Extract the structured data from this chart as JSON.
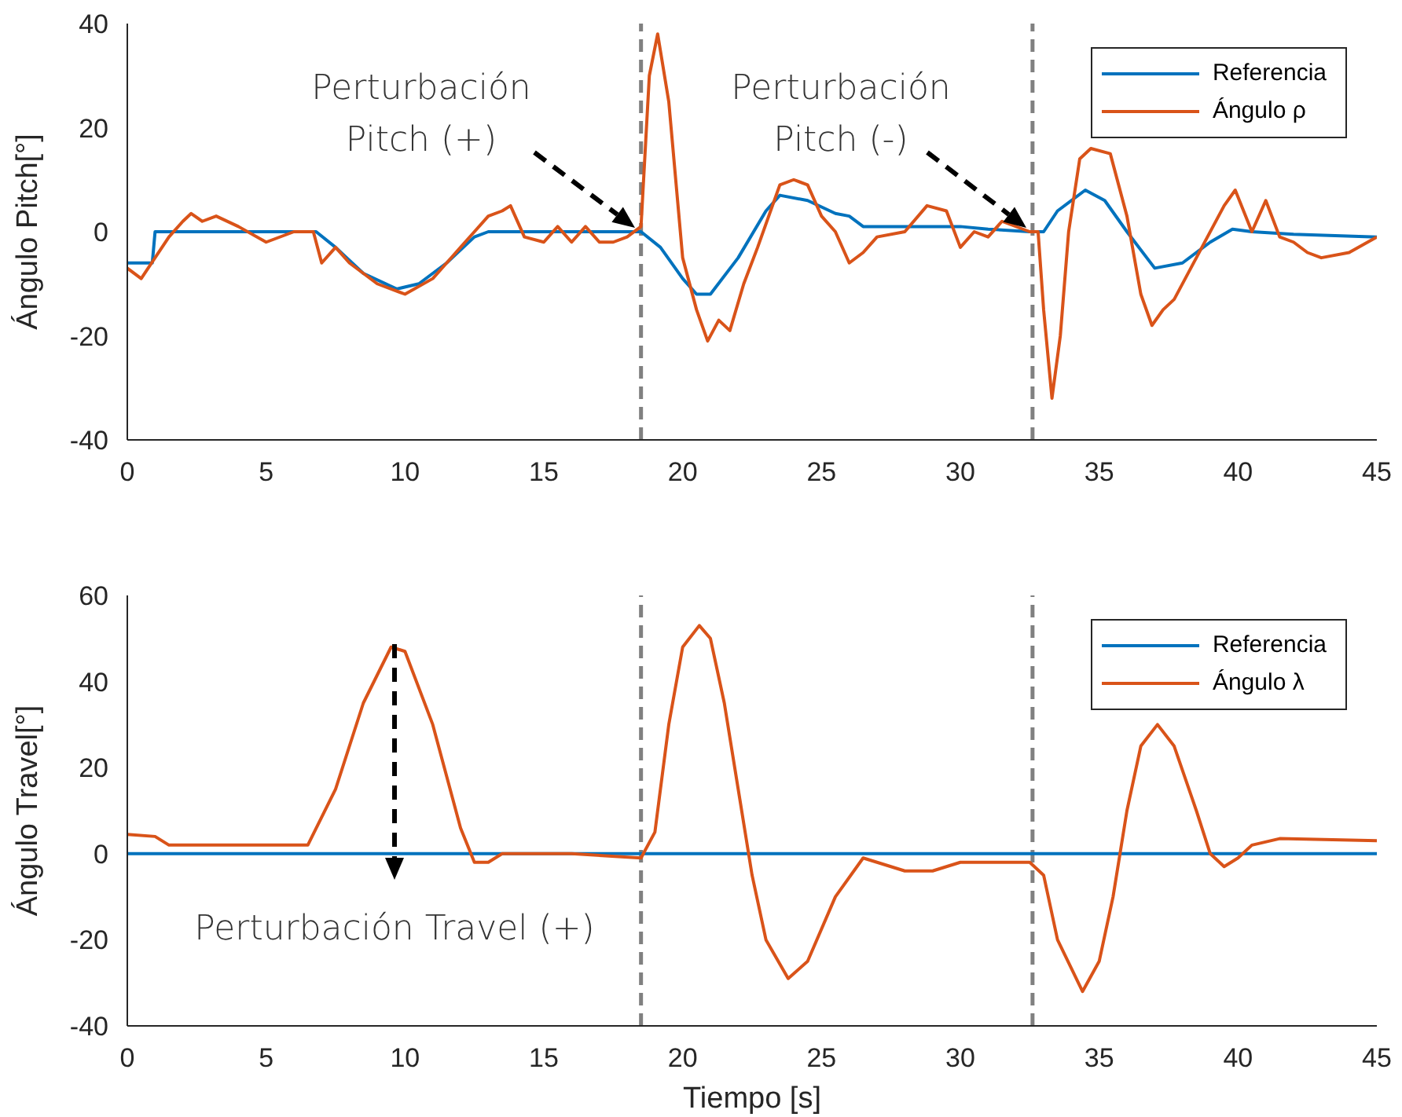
{
  "chart_data": [
    {
      "type": "line",
      "ylabel": "Ángulo Pitch[°]",
      "xlim": [
        0,
        45
      ],
      "xticks": [
        0,
        5,
        10,
        15,
        20,
        25,
        30,
        35,
        40,
        45
      ],
      "ylim": [
        -40,
        40
      ],
      "yticks": [
        -40,
        -20,
        0,
        20,
        40
      ],
      "grid": false,
      "legend": "top right",
      "line_style": "solid",
      "marker": "none",
      "series": [
        {
          "name": "Referencia",
          "color": "#0072bd",
          "x": [
            0,
            0.9,
            1,
            6.8,
            7.5,
            8.5,
            9.7,
            10.5,
            11.5,
            12.5,
            13,
            18.5,
            19.2,
            20,
            20.5,
            21,
            22,
            23,
            23.5,
            24.5,
            25.5,
            26,
            26.5,
            29,
            30,
            31,
            32.5,
            33,
            33.5,
            34.5,
            35.2,
            36,
            37,
            38,
            39,
            39.8,
            40.5,
            42,
            45
          ],
          "values": [
            -6,
            -6,
            0,
            0,
            -3,
            -8,
            -11,
            -10,
            -6,
            -1,
            0,
            0,
            -3,
            -9,
            -12,
            -12,
            -5,
            4,
            7,
            6,
            3.5,
            3,
            1,
            1,
            1,
            0.5,
            0,
            0,
            4,
            8,
            6,
            0,
            -7,
            -6,
            -2,
            0.5,
            0,
            -0.5,
            -1
          ]
        },
        {
          "name": "Ángulo ρ",
          "color": "#d95319",
          "x": [
            0,
            0.5,
            1,
            1.5,
            2,
            2.3,
            2.7,
            3.2,
            4,
            5,
            6,
            6.7,
            7,
            7.5,
            8,
            9,
            10,
            11,
            11.5,
            12,
            12.5,
            13,
            13.5,
            13.8,
            14.3,
            15,
            15.5,
            16,
            16.5,
            17,
            17.5,
            18,
            18.5,
            18.8,
            19.1,
            19.5,
            20,
            20.5,
            20.9,
            21.3,
            21.7,
            22.2,
            22.7,
            23.5,
            24,
            24.5,
            25,
            25.5,
            26,
            26.5,
            27,
            28,
            28.8,
            29.5,
            30,
            30.5,
            31,
            31.5,
            32.5,
            32.8,
            33,
            33.3,
            33.6,
            33.9,
            34.3,
            34.7,
            35.4,
            36,
            36.5,
            36.9,
            37.3,
            37.7,
            38.5,
            39.5,
            39.9,
            40.5,
            41,
            41.5,
            42,
            42.5,
            43,
            44,
            45
          ],
          "values": [
            -7,
            -9,
            -5,
            -1,
            2,
            3.5,
            2,
            3,
            1,
            -2,
            0,
            0,
            -6,
            -3,
            -6,
            -10,
            -12,
            -9,
            -6,
            -3,
            0,
            3,
            4,
            5,
            -1,
            -2,
            1,
            -2,
            1,
            -2,
            -2,
            -1,
            1,
            30,
            38,
            25,
            -5,
            -15,
            -21,
            -17,
            -19,
            -10,
            -3,
            9,
            10,
            9,
            3,
            0,
            -6,
            -4,
            -1,
            0,
            5,
            4,
            -3,
            0,
            -1,
            2,
            0,
            0,
            -15,
            -32,
            -20,
            0,
            14,
            16,
            15,
            3,
            -12,
            -18,
            -15,
            -13,
            -5,
            5,
            8,
            0,
            6,
            -1,
            -2,
            -4,
            -5,
            -4,
            -1
          ]
        }
      ],
      "ref_lines": [
        {
          "axis": "x",
          "value": 18.5,
          "color": "#808080",
          "line_style": "dashed"
        },
        {
          "axis": "x",
          "value": 32.6,
          "color": "#808080",
          "line_style": "dashed"
        }
      ],
      "annotations": [
        "Perturbación Pitch (+)",
        "Perturbación Pitch (-)"
      ]
    },
    {
      "type": "line",
      "xlabel": "Tiempo [s]",
      "ylabel": "Ángulo Travel[°]",
      "xlim": [
        0,
        45
      ],
      "xticks": [
        0,
        5,
        10,
        15,
        20,
        25,
        30,
        35,
        40,
        45
      ],
      "ylim": [
        -40,
        60
      ],
      "yticks": [
        -40,
        -20,
        0,
        20,
        40,
        60
      ],
      "grid": false,
      "legend": "top right",
      "line_style": "solid",
      "marker": "none",
      "series": [
        {
          "name": "Referencia",
          "color": "#0072bd",
          "x": [
            0,
            45
          ],
          "values": [
            0,
            0
          ]
        },
        {
          "name": "Ángulo λ",
          "color": "#d95319",
          "x": [
            0,
            1,
            1.5,
            6.5,
            7.5,
            8.5,
            9.5,
            10,
            11,
            12,
            12.5,
            13,
            13.5,
            16,
            18.5,
            19,
            19.5,
            20,
            20.6,
            21,
            21.5,
            22,
            22.5,
            23,
            23.8,
            24.5,
            25.5,
            26.5,
            27,
            28,
            29,
            30,
            31,
            32.5,
            33,
            33.5,
            34.4,
            35,
            35.5,
            36,
            36.5,
            37.1,
            37.7,
            38.5,
            39,
            39.5,
            40,
            40.5,
            41.5,
            45
          ],
          "values": [
            4.5,
            4,
            2,
            2,
            15,
            35,
            48,
            47,
            30,
            6,
            -2,
            -2,
            0,
            0,
            -1,
            5,
            30,
            48,
            53,
            50,
            35,
            15,
            -5,
            -20,
            -29,
            -25,
            -10,
            -1,
            -2,
            -4,
            -4,
            -2,
            -2,
            -2,
            -5,
            -20,
            -32,
            -25,
            -10,
            10,
            25,
            30,
            25,
            10,
            0,
            -3,
            -1,
            2,
            3.5,
            3
          ]
        }
      ],
      "ref_lines": [
        {
          "axis": "x",
          "value": 18.5,
          "color": "#808080",
          "line_style": "dashed"
        },
        {
          "axis": "x",
          "value": 32.6,
          "color": "#808080",
          "line_style": "dashed"
        }
      ],
      "annotations": [
        "Perturbación Travel (+)"
      ]
    }
  ]
}
